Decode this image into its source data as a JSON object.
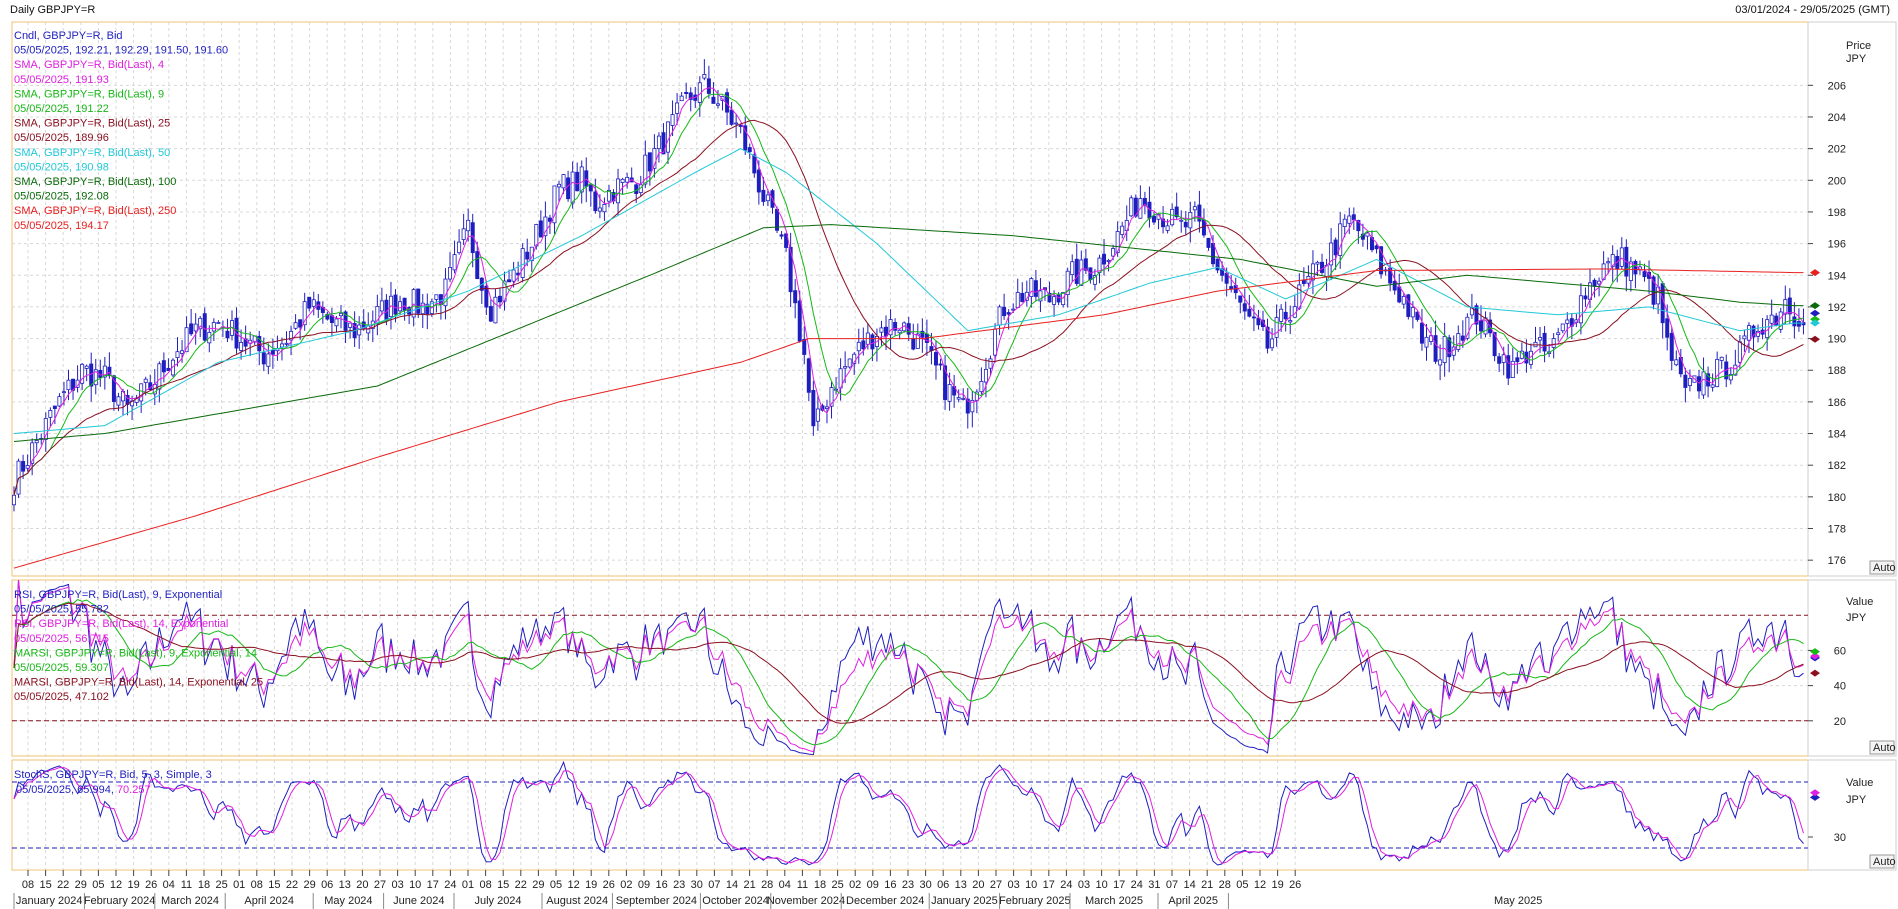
{
  "header": {
    "title": "Daily GBPJPY=R",
    "range": "03/01/2024 - 29/05/2025 (GMT)"
  },
  "price_panel": {
    "axis_title": "Price",
    "axis_unit": "JPY",
    "auto_label": "Auto",
    "legend": [
      {
        "text": "Cndl, GBPJPY=R, Bid",
        "color": "#1f1fbf"
      },
      {
        "text": "05/05/2025, 192.21, 192.29, 191.50, 191.60",
        "color": "#1f1fbf"
      },
      {
        "text": "SMA, GBPJPY=R, Bid(Last),  4",
        "color": "#e020e0"
      },
      {
        "text": "05/05/2025, 191.93",
        "color": "#e020e0"
      },
      {
        "text": "SMA, GBPJPY=R, Bid(Last),  9",
        "color": "#18b818"
      },
      {
        "text": "05/05/2025, 191.22",
        "color": "#18b818"
      },
      {
        "text": "SMA, GBPJPY=R, Bid(Last),  25",
        "color": "#8b1020"
      },
      {
        "text": "05/05/2025, 189.96",
        "color": "#8b1020"
      },
      {
        "text": "SMA, GBPJPY=R, Bid(Last),  50",
        "color": "#20c8d8"
      },
      {
        "text": "05/05/2025, 190.98",
        "color": "#20c8d8"
      },
      {
        "text": "SMA, GBPJPY=R, Bid(Last),  100",
        "color": "#0a6a0a"
      },
      {
        "text": "05/05/2025, 192.08",
        "color": "#0a6a0a"
      },
      {
        "text": "SMA, GBPJPY=R, Bid(Last),  250",
        "color": "#e82020"
      },
      {
        "text": "05/05/2025, 194.17",
        "color": "#e82020"
      }
    ]
  },
  "rsi_panel": {
    "axis_title": "Value",
    "axis_unit": "JPY",
    "auto_label": "Auto",
    "legend": [
      {
        "text": "RSI, GBPJPY=R, Bid(Last),  9, Exponential",
        "color": "#1f1fbf"
      },
      {
        "text": "05/05/2025, 55.782",
        "color": "#1f1fbf"
      },
      {
        "text": "RSI, GBPJPY=R, Bid(Last),  14, Exponential",
        "color": "#e020e0"
      },
      {
        "text": "05/05/2025, 56.715",
        "color": "#e020e0"
      },
      {
        "text": "MARSI, GBPJPY=R, Bid(Last),  9, Exponential, 14",
        "color": "#18b818"
      },
      {
        "text": "05/05/2025, 59.307",
        "color": "#18b818"
      },
      {
        "text": "MARSI, GBPJPY=R, Bid(Last),  14, Exponential, 25",
        "color": "#8b1020"
      },
      {
        "text": "05/05/2025, 47.102",
        "color": "#8b1020"
      }
    ]
  },
  "stoch_panel": {
    "axis_title": "Value",
    "axis_unit": "JPY",
    "auto_label": "Auto",
    "legend": [
      {
        "text": "StochS, GBPJPY=R, Bid,  5, 3, Simple, 3",
        "color": "#1f1fbf"
      }
    ],
    "legend_values": [
      {
        "text": "05/05/2025, 65.994",
        "color": "#1f1fbf"
      },
      {
        "text": ", ",
        "color": "#1f1fbf"
      },
      {
        "text": "70.257",
        "color": "#e020e0"
      }
    ]
  },
  "chart_data": {
    "type": "candlestick",
    "x_axis": {
      "day_ticks": [
        "08",
        "15",
        "22",
        "29",
        "05",
        "12",
        "19",
        "26",
        "04",
        "11",
        "18",
        "25",
        "01",
        "08",
        "15",
        "22",
        "29",
        "06",
        "13",
        "20",
        "27",
        "03",
        "10",
        "17",
        "24",
        "01",
        "08",
        "15",
        "22",
        "29",
        "05",
        "12",
        "19",
        "26",
        "02",
        "09",
        "16",
        "23",
        "30",
        "07",
        "14",
        "21",
        "28",
        "04",
        "11",
        "18",
        "25",
        "02",
        "09",
        "16",
        "23",
        "30",
        "06",
        "13",
        "20",
        "27",
        "03",
        "10",
        "17",
        "24",
        "03",
        "10",
        "17",
        "24",
        "31",
        "07",
        "14",
        "21",
        "28",
        "05",
        "12",
        "19",
        "26"
      ],
      "months": [
        "January 2024",
        "February 2024",
        "March 2024",
        "April 2024",
        "May 2024",
        "June 2024",
        "July 2024",
        "August 2024",
        "September 2024",
        "October 2024",
        "November 2024",
        "December 2024",
        "January 2025",
        "February 2025",
        "March 2025",
        "April 2025",
        "May 2025"
      ]
    },
    "price": {
      "ylim": [
        175,
        210
      ],
      "ticks": [
        "176",
        "178",
        "180",
        "182",
        "184",
        "186",
        "188",
        "190",
        "192",
        "194",
        "196",
        "198",
        "200",
        "202",
        "204",
        "206"
      ],
      "candle_keys": [
        [
          0,
          181.0
        ],
        [
          5,
          183.5
        ],
        [
          10,
          186.0
        ],
        [
          15,
          188.0
        ],
        [
          20,
          187.5
        ],
        [
          25,
          185.5
        ],
        [
          30,
          187.0
        ],
        [
          35,
          189.0
        ],
        [
          40,
          190.5
        ],
        [
          45,
          191.0
        ],
        [
          50,
          190.0
        ],
        [
          55,
          189.0
        ],
        [
          60,
          190.0
        ],
        [
          65,
          192.0
        ],
        [
          70,
          191.0
        ],
        [
          75,
          190.5
        ],
        [
          80,
          191.5
        ],
        [
          85,
          192.5
        ],
        [
          90,
          192.0
        ],
        [
          95,
          193.0
        ],
        [
          100,
          197.0
        ],
        [
          103,
          193.5
        ],
        [
          105,
          192.0
        ],
        [
          110,
          194.0
        ],
        [
          115,
          196.5
        ],
        [
          120,
          199.5
        ],
        [
          125,
          200.0
        ],
        [
          128,
          198.5
        ],
        [
          132,
          199.5
        ],
        [
          137,
          200.0
        ],
        [
          143,
          202.5
        ],
        [
          148,
          205.0
        ],
        [
          152,
          206.0
        ],
        [
          155,
          205.0
        ],
        [
          160,
          203.0
        ],
        [
          165,
          199.0
        ],
        [
          170,
          195.0
        ],
        [
          174,
          189.0
        ],
        [
          176,
          184.0
        ],
        [
          180,
          187.0
        ],
        [
          185,
          189.0
        ],
        [
          190,
          190.5
        ],
        [
          195,
          191.0
        ],
        [
          200,
          189.5
        ],
        [
          205,
          187.0
        ],
        [
          209,
          185.5
        ],
        [
          213,
          188.0
        ],
        [
          218,
          192.0
        ],
        [
          223,
          193.0
        ],
        [
          228,
          192.5
        ],
        [
          233,
          194.0
        ],
        [
          238,
          194.5
        ],
        [
          243,
          196.5
        ],
        [
          248,
          199.0
        ],
        [
          252,
          198.0
        ],
        [
          257,
          197.0
        ],
        [
          260,
          197.5
        ],
        [
          264,
          195.0
        ],
        [
          268,
          193.0
        ],
        [
          272,
          191.0
        ],
        [
          276,
          189.5
        ],
        [
          280,
          191.5
        ],
        [
          285,
          193.5
        ],
        [
          290,
          195.5
        ],
        [
          294,
          197.5
        ],
        [
          298,
          196.0
        ],
        [
          302,
          194.0
        ],
        [
          306,
          192.5
        ],
        [
          310,
          190.0
        ],
        [
          314,
          189.0
        ],
        [
          318,
          190.5
        ],
        [
          322,
          191.5
        ],
        [
          326,
          189.5
        ],
        [
          330,
          188.0
        ],
        [
          334,
          189.5
        ],
        [
          338,
          189.0
        ],
        [
          342,
          191.0
        ],
        [
          346,
          193.0
        ],
        [
          350,
          194.5
        ],
        [
          354,
          195.0
        ],
        [
          358,
          194.0
        ],
        [
          362,
          192.5
        ],
        [
          364,
          189.5
        ],
        [
          368,
          186.5
        ],
        [
          372,
          187.5
        ],
        [
          376,
          188.0
        ],
        [
          380,
          189.0
        ],
        [
          384,
          191.0
        ],
        [
          388,
          191.5
        ],
        [
          390,
          192.5
        ],
        [
          392,
          191.6
        ]
      ],
      "sma": [
        {
          "name": "SMA 9",
          "period": 9,
          "color": "#18b818",
          "last": 191.22
        },
        {
          "name": "SMA 25",
          "period": 25,
          "color": "#8b1020",
          "last": 189.96
        },
        {
          "name": "SMA 50",
          "period": 50,
          "color": "#20c8d8",
          "last": 190.98
        },
        {
          "name": "SMA 100",
          "period": 100,
          "color": "#0a6a0a",
          "last": 192.08
        },
        {
          "name": "SMA 250",
          "period": 250,
          "color": "#e82020",
          "last": 194.17
        }
      ],
      "sma250_keys": [
        [
          0,
          175.5
        ],
        [
          40,
          178.8
        ],
        [
          80,
          182.5
        ],
        [
          120,
          186.0
        ],
        [
          160,
          188.5
        ],
        [
          175,
          190.0
        ],
        [
          200,
          190.0
        ],
        [
          240,
          191.5
        ],
        [
          265,
          193.0
        ],
        [
          300,
          194.3
        ],
        [
          350,
          194.4
        ],
        [
          392,
          194.17
        ]
      ],
      "sma100_keys": [
        [
          0,
          183.5
        ],
        [
          20,
          184.0
        ],
        [
          50,
          185.5
        ],
        [
          80,
          187.0
        ],
        [
          110,
          190.5
        ],
        [
          140,
          194.0
        ],
        [
          165,
          197.0
        ],
        [
          180,
          197.2
        ],
        [
          220,
          196.5
        ],
        [
          270,
          195.0
        ],
        [
          300,
          193.3
        ],
        [
          320,
          194.0
        ],
        [
          340,
          193.5
        ],
        [
          360,
          193.0
        ],
        [
          380,
          192.3
        ],
        [
          392,
          192.08
        ]
      ],
      "sma50_keys": [
        [
          0,
          184.0
        ],
        [
          20,
          184.5
        ],
        [
          45,
          188.5
        ],
        [
          75,
          190.5
        ],
        [
          100,
          193.0
        ],
        [
          125,
          196.5
        ],
        [
          150,
          200.5
        ],
        [
          160,
          202.0
        ],
        [
          170,
          200.5
        ],
        [
          190,
          196.0
        ],
        [
          210,
          190.5
        ],
        [
          230,
          191.5
        ],
        [
          250,
          193.5
        ],
        [
          265,
          194.5
        ],
        [
          280,
          192.5
        ],
        [
          300,
          195.0
        ],
        [
          320,
          192.0
        ],
        [
          340,
          191.5
        ],
        [
          360,
          192.0
        ],
        [
          380,
          190.5
        ],
        [
          392,
          190.98
        ]
      ],
      "last_markers": [
        {
          "value": 194.17,
          "color": "#e82020"
        },
        {
          "value": 192.08,
          "color": "#0a6a0a"
        },
        {
          "value": 191.6,
          "color": "#1f1fbf"
        },
        {
          "value": 191.22,
          "color": "#18b818"
        },
        {
          "value": 190.98,
          "color": "#20c8d8"
        },
        {
          "value": 189.96,
          "color": "#8b1020"
        }
      ]
    },
    "rsi": {
      "ylim": [
        0,
        100
      ],
      "ticks": [
        "20",
        "40",
        "60"
      ],
      "overbought": 80,
      "oversold": 20,
      "last": {
        "rsi9": 55.782,
        "rsi14": 56.715,
        "marsi9": 59.307,
        "marsi14": 47.102
      }
    },
    "stoch": {
      "ylim": [
        0,
        100
      ],
      "ticks": [
        "30"
      ],
      "overbought": 80,
      "oversold": 20,
      "last": {
        "k": 65.994,
        "d": 70.257
      }
    }
  }
}
